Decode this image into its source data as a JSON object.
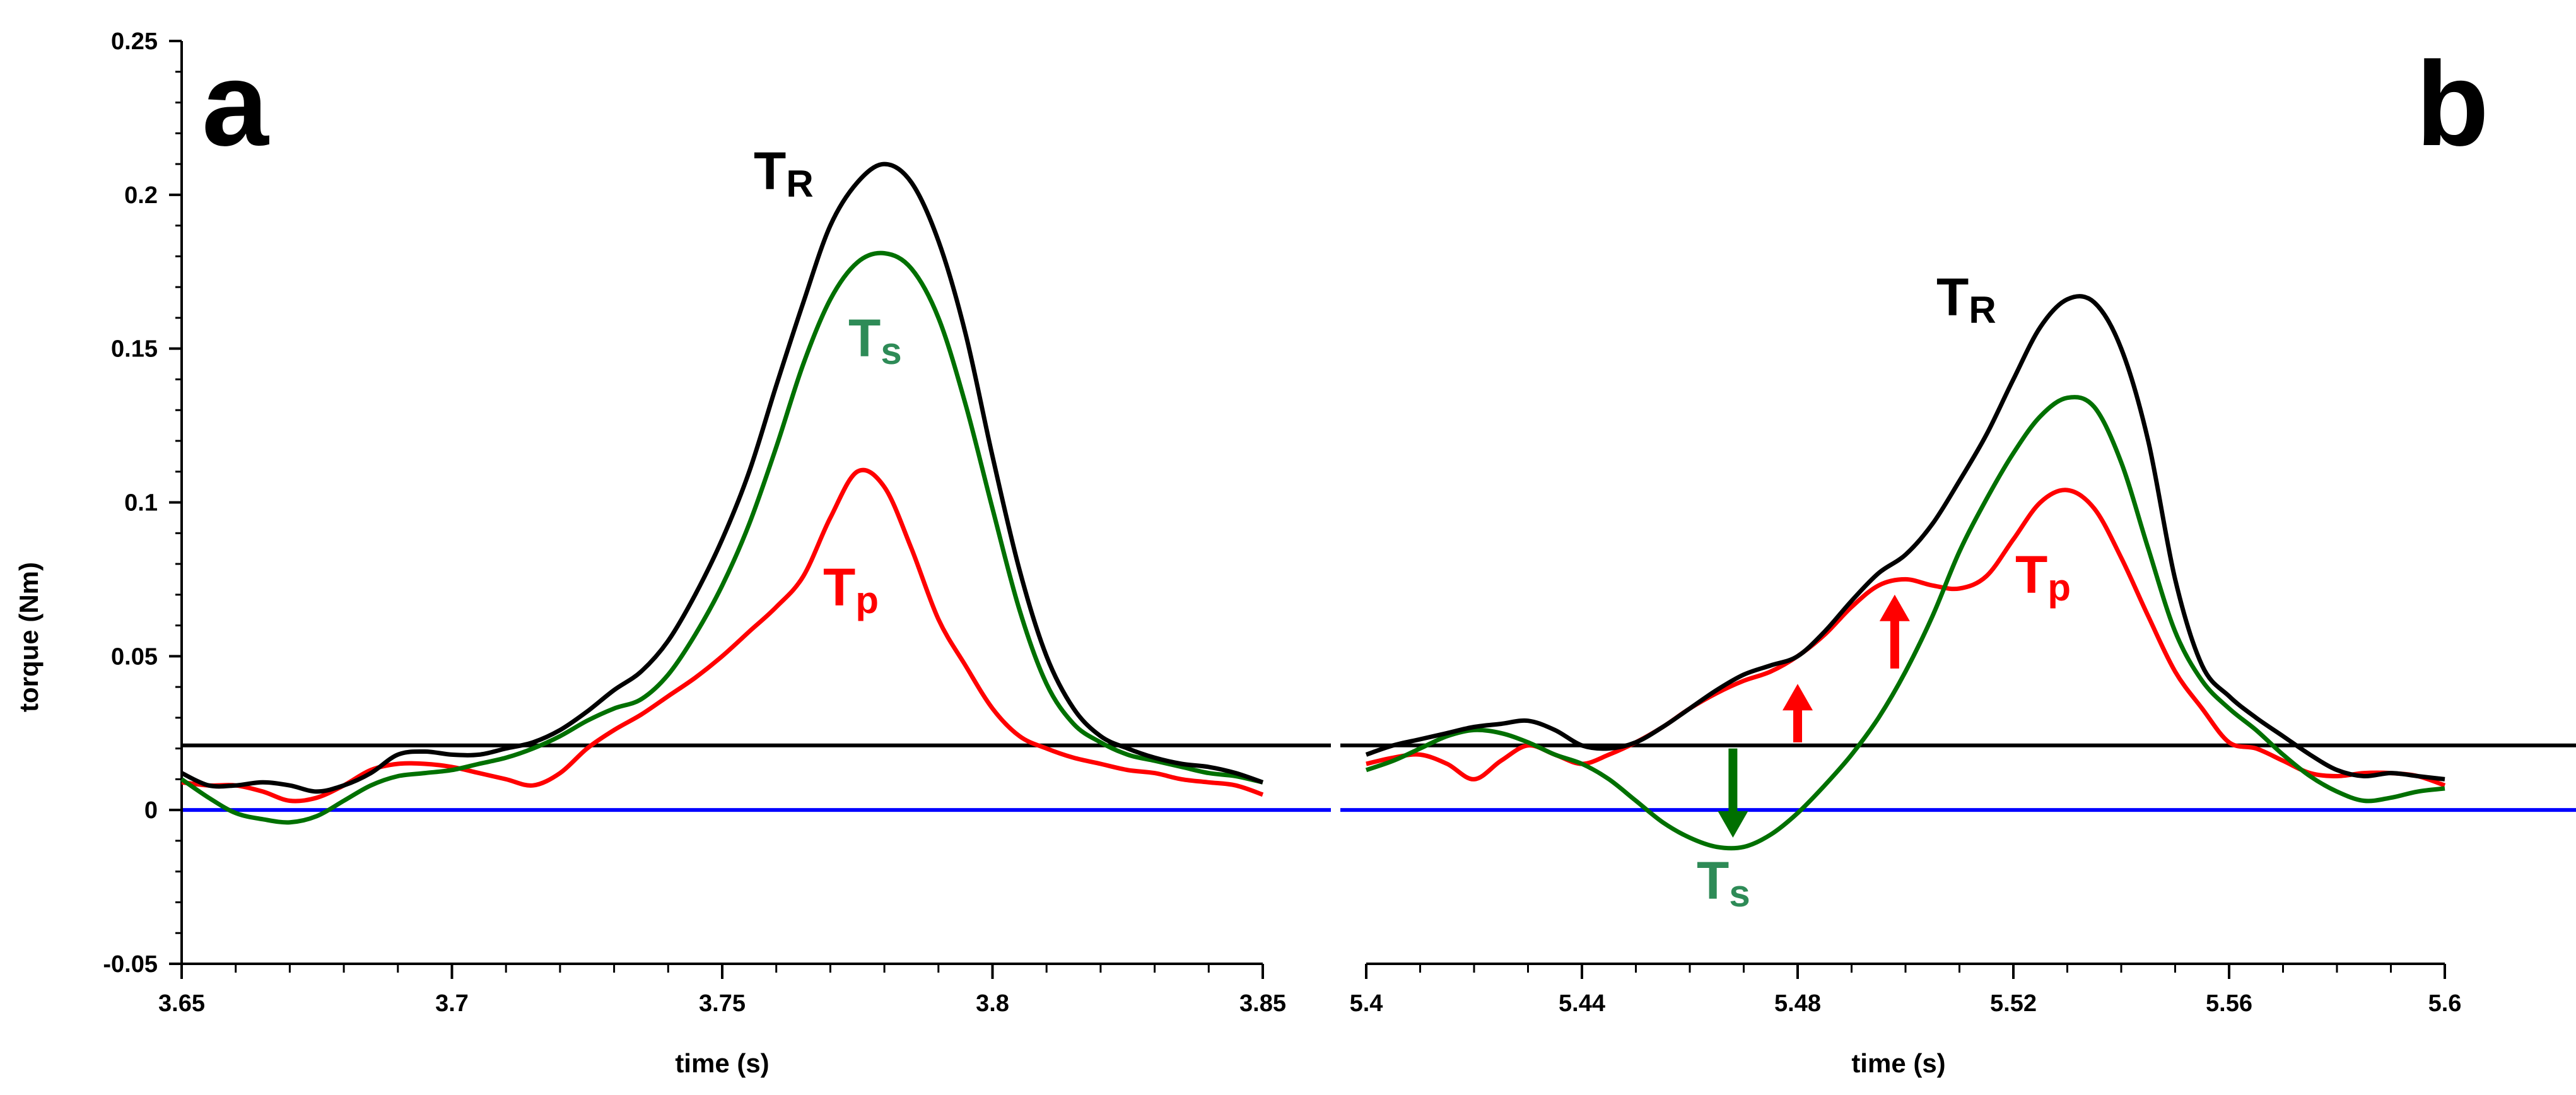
{
  "chart_data": [
    {
      "type": "line",
      "panel": "a",
      "panel_letter": "a",
      "xlabel": "time (s)",
      "ylabel": "torque (Nm)",
      "xlim": [
        3.65,
        3.85
      ],
      "ylim": [
        -0.05,
        0.25
      ],
      "x_ticks": [
        "3.65",
        "3.7",
        "3.75",
        "3.8",
        "3.85"
      ],
      "y_ticks": [
        "-0.05",
        "0",
        "0.05",
        "0.1",
        "0.15",
        "0.2",
        "0.25"
      ],
      "threshold": 0.021,
      "zero_line": 0,
      "series": [
        {
          "name": "TR",
          "color": "#000000",
          "x": [
            3.65,
            3.655,
            3.66,
            3.665,
            3.67,
            3.675,
            3.68,
            3.685,
            3.69,
            3.695,
            3.7,
            3.705,
            3.71,
            3.715,
            3.72,
            3.725,
            3.73,
            3.735,
            3.74,
            3.745,
            3.75,
            3.755,
            3.76,
            3.765,
            3.77,
            3.775,
            3.78,
            3.785,
            3.79,
            3.795,
            3.8,
            3.805,
            3.81,
            3.815,
            3.82,
            3.825,
            3.83,
            3.835,
            3.84,
            3.845,
            3.85
          ],
          "y": [
            0.012,
            0.008,
            0.008,
            0.009,
            0.008,
            0.006,
            0.008,
            0.012,
            0.018,
            0.019,
            0.018,
            0.018,
            0.02,
            0.022,
            0.026,
            0.032,
            0.039,
            0.045,
            0.055,
            0.07,
            0.088,
            0.11,
            0.138,
            0.165,
            0.19,
            0.204,
            0.21,
            0.204,
            0.185,
            0.155,
            0.115,
            0.078,
            0.05,
            0.033,
            0.024,
            0.02,
            0.017,
            0.015,
            0.014,
            0.012,
            0.009
          ]
        },
        {
          "name": "Ts",
          "color": "#007000",
          "x": [
            3.65,
            3.655,
            3.66,
            3.665,
            3.67,
            3.675,
            3.68,
            3.685,
            3.69,
            3.695,
            3.7,
            3.705,
            3.71,
            3.715,
            3.72,
            3.725,
            3.73,
            3.735,
            3.74,
            3.745,
            3.75,
            3.755,
            3.76,
            3.765,
            3.77,
            3.775,
            3.78,
            3.785,
            3.79,
            3.795,
            3.8,
            3.805,
            3.81,
            3.815,
            3.82,
            3.825,
            3.83,
            3.835,
            3.84,
            3.845,
            3.85
          ],
          "y": [
            0.01,
            0.004,
            -0.001,
            -0.003,
            -0.004,
            -0.002,
            0.003,
            0.008,
            0.011,
            0.012,
            0.013,
            0.015,
            0.017,
            0.02,
            0.024,
            0.029,
            0.033,
            0.036,
            0.044,
            0.057,
            0.073,
            0.093,
            0.118,
            0.145,
            0.166,
            0.178,
            0.181,
            0.176,
            0.16,
            0.132,
            0.098,
            0.065,
            0.041,
            0.028,
            0.022,
            0.018,
            0.016,
            0.014,
            0.012,
            0.011,
            0.009
          ]
        },
        {
          "name": "Tp",
          "color": "#ff0000",
          "x": [
            3.65,
            3.655,
            3.66,
            3.665,
            3.67,
            3.675,
            3.68,
            3.685,
            3.69,
            3.695,
            3.7,
            3.705,
            3.71,
            3.715,
            3.72,
            3.725,
            3.73,
            3.735,
            3.74,
            3.745,
            3.75,
            3.755,
            3.76,
            3.765,
            3.77,
            3.775,
            3.78,
            3.785,
            3.79,
            3.795,
            3.8,
            3.805,
            3.81,
            3.815,
            3.82,
            3.825,
            3.83,
            3.835,
            3.84,
            3.845,
            3.85
          ],
          "y": [
            0.009,
            0.008,
            0.008,
            0.006,
            0.003,
            0.004,
            0.008,
            0.013,
            0.015,
            0.015,
            0.014,
            0.012,
            0.01,
            0.008,
            0.012,
            0.02,
            0.026,
            0.031,
            0.037,
            0.043,
            0.05,
            0.058,
            0.066,
            0.076,
            0.095,
            0.11,
            0.105,
            0.085,
            0.062,
            0.047,
            0.033,
            0.024,
            0.02,
            0.017,
            0.015,
            0.013,
            0.012,
            0.01,
            0.009,
            0.008,
            0.005
          ]
        }
      ],
      "labels": [
        {
          "name": "TR",
          "main": "T",
          "sub": "R",
          "color": "#000000"
        },
        {
          "name": "Ts",
          "main": "T",
          "sub": "s",
          "color": "#2e8b57"
        },
        {
          "name": "Tp",
          "main": "T",
          "sub": "p",
          "color": "#ff0000"
        }
      ]
    },
    {
      "type": "line",
      "panel": "b",
      "panel_letter": "b",
      "xlabel": "time (s)",
      "xlim": [
        5.4,
        5.6
      ],
      "x_ticks": [
        "5.4",
        "5.44",
        "5.48",
        "5.52",
        "5.56",
        "5.6"
      ],
      "threshold": 0.021,
      "zero_line": 0,
      "series": [
        {
          "name": "TR",
          "color": "#000000",
          "x": [
            5.4,
            5.405,
            5.41,
            5.415,
            5.42,
            5.425,
            5.43,
            5.435,
            5.44,
            5.445,
            5.45,
            5.455,
            5.46,
            5.465,
            5.47,
            5.475,
            5.48,
            5.485,
            5.49,
            5.495,
            5.5,
            5.505,
            5.51,
            5.515,
            5.52,
            5.525,
            5.53,
            5.535,
            5.54,
            5.545,
            5.55,
            5.555,
            5.56,
            5.565,
            5.57,
            5.575,
            5.58,
            5.585,
            5.59,
            5.595,
            5.6
          ],
          "y": [
            0.018,
            0.021,
            0.023,
            0.025,
            0.027,
            0.028,
            0.029,
            0.026,
            0.021,
            0.02,
            0.022,
            0.027,
            0.033,
            0.039,
            0.044,
            0.047,
            0.05,
            0.058,
            0.068,
            0.077,
            0.083,
            0.093,
            0.107,
            0.122,
            0.14,
            0.157,
            0.166,
            0.165,
            0.15,
            0.12,
            0.075,
            0.047,
            0.037,
            0.03,
            0.024,
            0.018,
            0.013,
            0.011,
            0.012,
            0.011,
            0.01
          ]
        },
        {
          "name": "Ts",
          "color": "#007000",
          "x": [
            5.4,
            5.405,
            5.41,
            5.415,
            5.42,
            5.425,
            5.43,
            5.435,
            5.44,
            5.445,
            5.45,
            5.455,
            5.46,
            5.465,
            5.47,
            5.475,
            5.48,
            5.485,
            5.49,
            5.495,
            5.5,
            5.505,
            5.51,
            5.515,
            5.52,
            5.525,
            5.53,
            5.535,
            5.54,
            5.545,
            5.55,
            5.555,
            5.56,
            5.565,
            5.57,
            5.575,
            5.58,
            5.585,
            5.59,
            5.595,
            5.6
          ],
          "y": [
            0.013,
            0.016,
            0.02,
            0.024,
            0.026,
            0.025,
            0.022,
            0.018,
            0.015,
            0.01,
            0.003,
            -0.004,
            -0.009,
            -0.012,
            -0.012,
            -0.008,
            -0.001,
            0.008,
            0.018,
            0.03,
            0.045,
            0.063,
            0.084,
            0.101,
            0.116,
            0.128,
            0.134,
            0.131,
            0.113,
            0.085,
            0.058,
            0.042,
            0.033,
            0.026,
            0.018,
            0.011,
            0.006,
            0.003,
            0.004,
            0.006,
            0.007
          ]
        },
        {
          "name": "Tp",
          "color": "#ff0000",
          "x": [
            5.4,
            5.405,
            5.41,
            5.415,
            5.42,
            5.425,
            5.43,
            5.435,
            5.44,
            5.445,
            5.45,
            5.455,
            5.46,
            5.465,
            5.47,
            5.475,
            5.48,
            5.485,
            5.49,
            5.495,
            5.5,
            5.505,
            5.51,
            5.515,
            5.52,
            5.525,
            5.53,
            5.535,
            5.54,
            5.545,
            5.55,
            5.555,
            5.56,
            5.565,
            5.57,
            5.575,
            5.58,
            5.585,
            5.59,
            5.595,
            5.6
          ],
          "y": [
            0.015,
            0.017,
            0.018,
            0.015,
            0.01,
            0.016,
            0.021,
            0.018,
            0.015,
            0.018,
            0.022,
            0.027,
            0.033,
            0.038,
            0.042,
            0.045,
            0.05,
            0.057,
            0.066,
            0.073,
            0.075,
            0.073,
            0.072,
            0.076,
            0.088,
            0.1,
            0.104,
            0.098,
            0.082,
            0.063,
            0.045,
            0.033,
            0.022,
            0.02,
            0.016,
            0.012,
            0.011,
            0.012,
            0.012,
            0.011,
            0.008
          ]
        }
      ],
      "labels": [
        {
          "name": "TR",
          "main": "T",
          "sub": "R",
          "color": "#000000"
        },
        {
          "name": "Ts",
          "main": "T",
          "sub": "s",
          "color": "#2e8b57"
        },
        {
          "name": "Tp",
          "main": "T",
          "sub": "p",
          "color": "#ff0000"
        }
      ],
      "arrows": [
        {
          "name": "tp-arrow-1",
          "x": 5.48,
          "y_from": 0.022,
          "y_to": 0.041,
          "color": "#ff0000"
        },
        {
          "name": "tp-arrow-2",
          "x": 5.498,
          "y_from": 0.046,
          "y_to": 0.07,
          "color": "#ff0000"
        },
        {
          "name": "ts-arrow",
          "x": 5.468,
          "y_from": 0.02,
          "y_to": -0.009,
          "color": "#007000"
        }
      ]
    }
  ],
  "colors": {
    "threshold_line": "#000000",
    "zero_line": "#0000ff"
  }
}
